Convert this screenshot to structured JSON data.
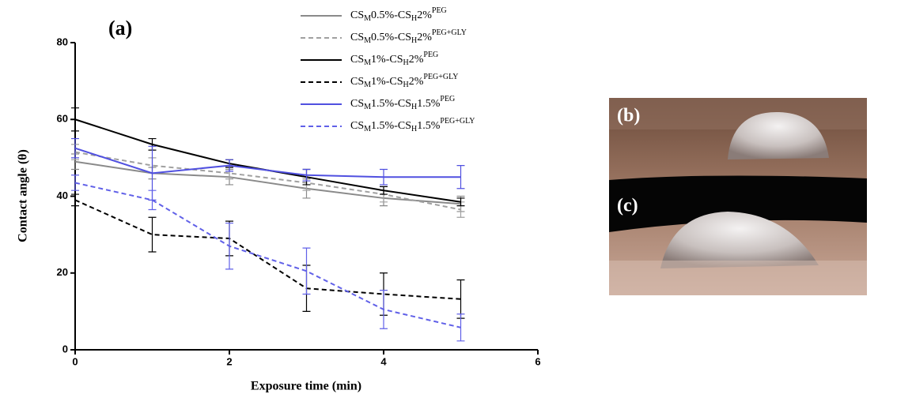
{
  "chart_data": {
    "type": "line",
    "annotations": [
      "(a)",
      "(b)",
      "(c)"
    ],
    "x_label": "Exposure time (min)",
    "y_label": "Contact angle (θ)",
    "x": [
      0,
      1,
      2,
      3,
      4,
      5
    ],
    "xlim": [
      0,
      6
    ],
    "xticks": [
      0,
      2,
      4,
      6
    ],
    "ylim": [
      0,
      80
    ],
    "yticks": [
      0,
      20,
      40,
      60,
      80
    ],
    "series": [
      {
        "name": "CSM0.5%-CSH2%PEG",
        "color": "#8a8a8a",
        "linestyle": "solid",
        "values": [
          49,
          46,
          45,
          42,
          39.5,
          38
        ],
        "errors": [
          2,
          1.5,
          2,
          2.5,
          2,
          2
        ]
      },
      {
        "name": "CSM0.5%-CSH2%PEG+GLY",
        "color": "#a0a0a0",
        "linestyle": "dashed",
        "values": [
          51.5,
          48,
          46,
          43.5,
          40.5,
          36.5
        ],
        "errors": [
          2,
          2,
          1.5,
          2,
          2,
          2
        ]
      },
      {
        "name": "CSM1%-CSH2%PEG",
        "color": "#000000",
        "linestyle": "solid",
        "values": [
          60,
          53.5,
          48.5,
          45,
          41.5,
          38.5
        ],
        "errors": [
          3,
          1.5,
          1,
          2,
          1,
          1
        ]
      },
      {
        "name": "CSM1%-CSH2%PEG+GLY",
        "color": "#000000",
        "linestyle": "dashed",
        "values": [
          39,
          30,
          29,
          16,
          14.5,
          13.2
        ],
        "errors": [
          1.5,
          4.5,
          4.5,
          6,
          5.5,
          5
        ]
      },
      {
        "name": "CSM1.5%-CSH1.5%PEG",
        "color": "#5050e0",
        "linestyle": "solid",
        "values": [
          52.5,
          46,
          48,
          45.5,
          45,
          45
        ],
        "errors": [
          2.5,
          7,
          1.5,
          1.5,
          2,
          3
        ]
      },
      {
        "name": "CSM1.5%-CSH1.5%PEG+GLY",
        "color": "#6060e8",
        "linestyle": "dashed",
        "values": [
          43.5,
          39,
          27,
          20.5,
          10.5,
          5.8
        ],
        "errors": [
          2,
          2.5,
          6,
          6,
          5,
          3.5
        ]
      }
    ]
  }
}
